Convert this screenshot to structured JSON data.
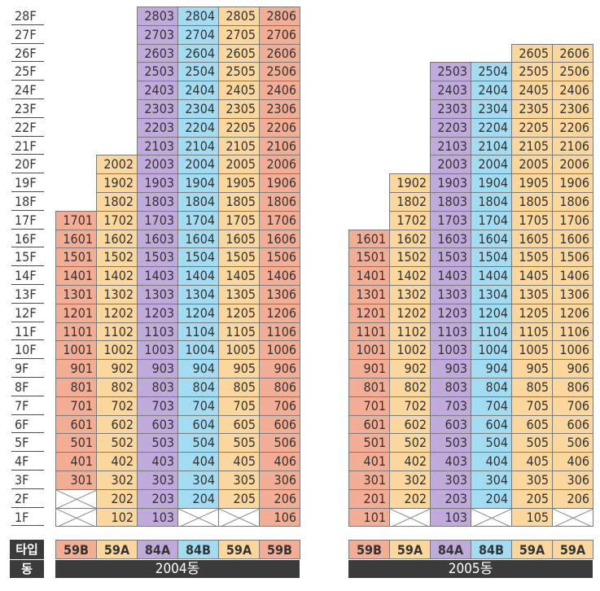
{
  "floors": [
    "28F",
    "27F",
    "26F",
    "25F",
    "24F",
    "23F",
    "22F",
    "21F",
    "20F",
    "19F",
    "18F",
    "17F",
    "16F",
    "15F",
    "14F",
    "13F",
    "12F",
    "11F",
    "10F",
    "9F",
    "8F",
    "7F",
    "6F",
    "5F",
    "4F",
    "3F",
    "2F",
    "1F"
  ],
  "legend": {
    "type_label": "타입",
    "dong_label": "동"
  },
  "colors": {
    "59B": "#f4ad95",
    "59A": "#fbd79e",
    "84A": "#c0aadb",
    "84B": "#a3dbf2",
    "empty": "#ffffff",
    "bar": "#3b3b3b"
  },
  "buildings": [
    {
      "name": "2004동",
      "types": [
        "59B",
        "59A",
        "84A",
        "84B",
        "59A",
        "59B"
      ],
      "units": [
        [
          "",
          "",
          "2803",
          "2804",
          "2805",
          "2806"
        ],
        [
          "",
          "",
          "2703",
          "2704",
          "2705",
          "2706"
        ],
        [
          "",
          "",
          "2603",
          "2604",
          "2605",
          "2606"
        ],
        [
          "",
          "",
          "2503",
          "2504",
          "2505",
          "2506"
        ],
        [
          "",
          "",
          "2403",
          "2404",
          "2405",
          "2406"
        ],
        [
          "",
          "",
          "2303",
          "2304",
          "2305",
          "2306"
        ],
        [
          "",
          "",
          "2203",
          "2204",
          "2205",
          "2206"
        ],
        [
          "",
          "",
          "2103",
          "2104",
          "2105",
          "2106"
        ],
        [
          "",
          "2002",
          "2003",
          "2004",
          "2005",
          "2006"
        ],
        [
          "",
          "1902",
          "1903",
          "1904",
          "1905",
          "1906"
        ],
        [
          "",
          "1802",
          "1803",
          "1804",
          "1805",
          "1806"
        ],
        [
          "1701",
          "1702",
          "1703",
          "1704",
          "1705",
          "1706"
        ],
        [
          "1601",
          "1602",
          "1603",
          "1604",
          "1605",
          "1606"
        ],
        [
          "1501",
          "1502",
          "1503",
          "1504",
          "1505",
          "1506"
        ],
        [
          "1401",
          "1402",
          "1403",
          "1404",
          "1405",
          "1406"
        ],
        [
          "1301",
          "1302",
          "1303",
          "1304",
          "1305",
          "1306"
        ],
        [
          "1201",
          "1202",
          "1203",
          "1204",
          "1205",
          "1206"
        ],
        [
          "1101",
          "1102",
          "1103",
          "1104",
          "1105",
          "1106"
        ],
        [
          "1001",
          "1002",
          "1003",
          "1004",
          "1005",
          "1006"
        ],
        [
          "901",
          "902",
          "903",
          "904",
          "905",
          "906"
        ],
        [
          "801",
          "802",
          "803",
          "804",
          "805",
          "806"
        ],
        [
          "701",
          "702",
          "703",
          "704",
          "705",
          "706"
        ],
        [
          "601",
          "602",
          "603",
          "604",
          "605",
          "606"
        ],
        [
          "501",
          "502",
          "503",
          "504",
          "505",
          "506"
        ],
        [
          "401",
          "402",
          "403",
          "404",
          "405",
          "406"
        ],
        [
          "301",
          "302",
          "303",
          "304",
          "305",
          "306"
        ],
        [
          "X",
          "202",
          "203",
          "204",
          "205",
          "206"
        ],
        [
          "X",
          "102",
          "103",
          "X",
          "X",
          "106"
        ]
      ]
    },
    {
      "name": "2005동",
      "types": [
        "59B",
        "59A",
        "84A",
        "84B",
        "59A",
        "59A"
      ],
      "units": [
        [
          "",
          "",
          "",
          "",
          "",
          ""
        ],
        [
          "",
          "",
          "",
          "",
          "",
          ""
        ],
        [
          "",
          "",
          "",
          "",
          "2605",
          "2606"
        ],
        [
          "",
          "",
          "2503",
          "2504",
          "2505",
          "2506"
        ],
        [
          "",
          "",
          "2403",
          "2404",
          "2405",
          "2406"
        ],
        [
          "",
          "",
          "2303",
          "2304",
          "2305",
          "2306"
        ],
        [
          "",
          "",
          "2203",
          "2204",
          "2205",
          "2206"
        ],
        [
          "",
          "",
          "2103",
          "2104",
          "2105",
          "2106"
        ],
        [
          "",
          "",
          "2003",
          "2004",
          "2005",
          "2006"
        ],
        [
          "",
          "1902",
          "1903",
          "1904",
          "1905",
          "1906"
        ],
        [
          "",
          "1802",
          "1803",
          "1804",
          "1805",
          "1806"
        ],
        [
          "",
          "1702",
          "1703",
          "1704",
          "1705",
          "1706"
        ],
        [
          "1601",
          "1602",
          "1603",
          "1604",
          "1605",
          "1606"
        ],
        [
          "1501",
          "1502",
          "1503",
          "1504",
          "1505",
          "1506"
        ],
        [
          "1401",
          "1402",
          "1403",
          "1404",
          "1405",
          "1406"
        ],
        [
          "1301",
          "1302",
          "1303",
          "1304",
          "1305",
          "1306"
        ],
        [
          "1201",
          "1202",
          "1203",
          "1204",
          "1205",
          "1206"
        ],
        [
          "1101",
          "1102",
          "1103",
          "1104",
          "1105",
          "1106"
        ],
        [
          "1001",
          "1002",
          "1003",
          "1004",
          "1005",
          "1006"
        ],
        [
          "901",
          "902",
          "903",
          "904",
          "905",
          "906"
        ],
        [
          "801",
          "802",
          "803",
          "804",
          "805",
          "806"
        ],
        [
          "701",
          "702",
          "703",
          "704",
          "705",
          "706"
        ],
        [
          "601",
          "602",
          "603",
          "604",
          "605",
          "606"
        ],
        [
          "501",
          "502",
          "503",
          "504",
          "505",
          "506"
        ],
        [
          "401",
          "402",
          "403",
          "404",
          "405",
          "406"
        ],
        [
          "301",
          "302",
          "303",
          "304",
          "305",
          "306"
        ],
        [
          "201",
          "202",
          "203",
          "204",
          "205",
          "206"
        ],
        [
          "101",
          "X",
          "103",
          "X",
          "105",
          "X"
        ]
      ]
    }
  ]
}
